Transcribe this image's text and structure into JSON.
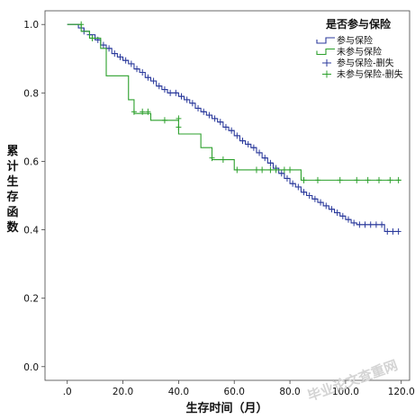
{
  "chart_data": {
    "type": "line",
    "title": "",
    "xlabel": "生存时间（月）",
    "ylabel": "累计生存函数",
    "xlim": [
      -8,
      123
    ],
    "ylim": [
      -0.04,
      1.04
    ],
    "x_ticks": [
      0,
      20,
      40,
      60,
      80,
      100,
      120
    ],
    "x_tick_labels": [
      ".0",
      "20.0",
      "40.0",
      "60.0",
      "80.0",
      "100.0",
      "120.0"
    ],
    "y_ticks": [
      0,
      0.2,
      0.4,
      0.6,
      0.8,
      1.0
    ],
    "y_tick_labels": [
      "0.0",
      "0.2",
      "0.4",
      "0.6",
      "0.8",
      "1.0"
    ],
    "grid": false,
    "legend": {
      "title": "是否参与保险",
      "placement": "top-right",
      "entries": [
        {
          "label": "参与保险",
          "kind": "line",
          "color": "#2b3a9c"
        },
        {
          "label": "未参与保险",
          "kind": "line",
          "color": "#2ca02c"
        },
        {
          "label": "参与保险-删失",
          "kind": "censor",
          "color": "#2b3a9c"
        },
        {
          "label": "未参与保险-删失",
          "kind": "censor",
          "color": "#2ca02c"
        }
      ]
    },
    "series": [
      {
        "name": "参与保险",
        "color": "#2b3a9c",
        "step_x": [
          0,
          4,
          6,
          8,
          10,
          12,
          14,
          16,
          18,
          20,
          22,
          24,
          26,
          28,
          30,
          32,
          34,
          36,
          38,
          40,
          42,
          44,
          46,
          48,
          50,
          52,
          54,
          56,
          58,
          60,
          62,
          64,
          66,
          68,
          70,
          72,
          74,
          76,
          78,
          80,
          82,
          84,
          86,
          88,
          90,
          92,
          94,
          96,
          98,
          100,
          102,
          104,
          106,
          108,
          110,
          112,
          114,
          116,
          118,
          119
        ],
        "step_y": [
          1.0,
          0.99,
          0.98,
          0.97,
          0.955,
          0.94,
          0.93,
          0.915,
          0.905,
          0.895,
          0.885,
          0.87,
          0.86,
          0.845,
          0.835,
          0.82,
          0.81,
          0.8,
          0.8,
          0.79,
          0.78,
          0.77,
          0.755,
          0.745,
          0.735,
          0.725,
          0.715,
          0.7,
          0.69,
          0.675,
          0.66,
          0.65,
          0.64,
          0.625,
          0.61,
          0.595,
          0.58,
          0.565,
          0.55,
          0.535,
          0.525,
          0.51,
          0.5,
          0.49,
          0.48,
          0.47,
          0.46,
          0.45,
          0.44,
          0.43,
          0.42,
          0.415,
          0.415,
          0.415,
          0.415,
          0.415,
          0.395,
          0.395,
          0.395,
          0.395
        ],
        "censored": [
          [
            6,
            0.98
          ],
          [
            8,
            0.97
          ],
          [
            11,
            0.955
          ],
          [
            13,
            0.94
          ],
          [
            15,
            0.93
          ],
          [
            17,
            0.915
          ],
          [
            19,
            0.905
          ],
          [
            21,
            0.895
          ],
          [
            23,
            0.885
          ],
          [
            25,
            0.87
          ],
          [
            27,
            0.86
          ],
          [
            29,
            0.845
          ],
          [
            31,
            0.835
          ],
          [
            33,
            0.82
          ],
          [
            35,
            0.81
          ],
          [
            37,
            0.8
          ],
          [
            39,
            0.8
          ],
          [
            41,
            0.79
          ],
          [
            43,
            0.78
          ],
          [
            45,
            0.77
          ],
          [
            47,
            0.755
          ],
          [
            49,
            0.745
          ],
          [
            51,
            0.735
          ],
          [
            53,
            0.725
          ],
          [
            55,
            0.715
          ],
          [
            57,
            0.7
          ],
          [
            59,
            0.69
          ],
          [
            61,
            0.675
          ],
          [
            63,
            0.66
          ],
          [
            65,
            0.65
          ],
          [
            67,
            0.64
          ],
          [
            69,
            0.625
          ],
          [
            71,
            0.61
          ],
          [
            73,
            0.595
          ],
          [
            75,
            0.58
          ],
          [
            77,
            0.565
          ],
          [
            79,
            0.55
          ],
          [
            81,
            0.535
          ],
          [
            83,
            0.525
          ],
          [
            85,
            0.51
          ],
          [
            87,
            0.5
          ],
          [
            89,
            0.49
          ],
          [
            91,
            0.48
          ],
          [
            93,
            0.47
          ],
          [
            95,
            0.46
          ],
          [
            97,
            0.45
          ],
          [
            99,
            0.44
          ],
          [
            101,
            0.43
          ],
          [
            103,
            0.42
          ],
          [
            105,
            0.415
          ],
          [
            107,
            0.415
          ],
          [
            109,
            0.415
          ],
          [
            111,
            0.415
          ],
          [
            113,
            0.415
          ],
          [
            115,
            0.395
          ],
          [
            117,
            0.395
          ],
          [
            119,
            0.395
          ]
        ]
      },
      {
        "name": "未参与保险",
        "color": "#2ca02c",
        "step_x": [
          0,
          5,
          8,
          12,
          14,
          22,
          24,
          30,
          38,
          40,
          48,
          52,
          60,
          84,
          120
        ],
        "step_y": [
          1.0,
          0.98,
          0.96,
          0.93,
          0.85,
          0.78,
          0.74,
          0.72,
          0.72,
          0.68,
          0.64,
          0.605,
          0.575,
          0.545,
          0.545
        ],
        "censored": [
          [
            5,
            1.0
          ],
          [
            9,
            0.96
          ],
          [
            24,
            0.745
          ],
          [
            27,
            0.745
          ],
          [
            29,
            0.745
          ],
          [
            35,
            0.72
          ],
          [
            40,
            0.725
          ],
          [
            40,
            0.7
          ],
          [
            52,
            0.61
          ],
          [
            56,
            0.605
          ],
          [
            61,
            0.575
          ],
          [
            68,
            0.575
          ],
          [
            70,
            0.575
          ],
          [
            73,
            0.575
          ],
          [
            75,
            0.575
          ],
          [
            78,
            0.575
          ],
          [
            80,
            0.575
          ],
          [
            85,
            0.545
          ],
          [
            90,
            0.545
          ],
          [
            98,
            0.545
          ],
          [
            104,
            0.545
          ],
          [
            108,
            0.545
          ],
          [
            112,
            0.545
          ],
          [
            116,
            0.545
          ],
          [
            119,
            0.545
          ]
        ]
      }
    ]
  },
  "watermark": "毕业论文查重网"
}
